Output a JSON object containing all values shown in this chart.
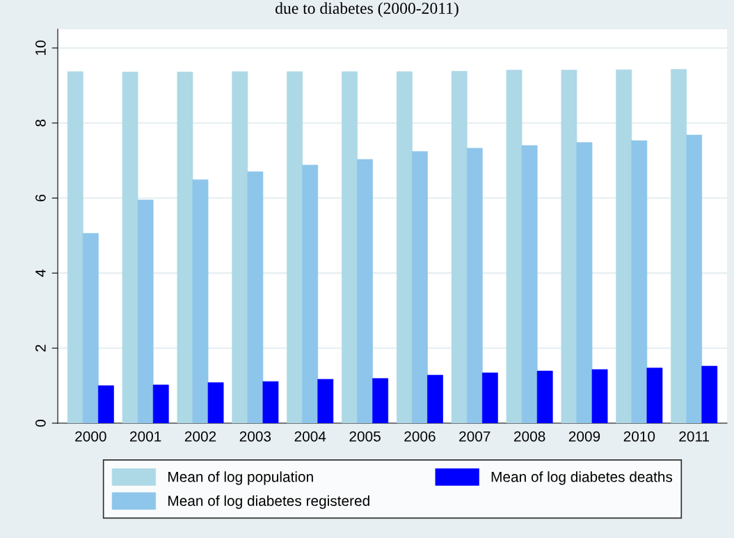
{
  "chart_data": {
    "type": "bar",
    "title": "due to diabetes (2000-2011)",
    "categories": [
      "2000",
      "2001",
      "2002",
      "2003",
      "2004",
      "2005",
      "2006",
      "2007",
      "2008",
      "2009",
      "2010",
      "2011"
    ],
    "series": [
      {
        "name": "Mean of log population",
        "color": "#add8e6",
        "values": [
          9.37,
          9.36,
          9.36,
          9.37,
          9.37,
          9.37,
          9.37,
          9.38,
          9.41,
          9.41,
          9.42,
          9.43
        ]
      },
      {
        "name": "Mean of log diabetes registered",
        "color": "#8ec5ea",
        "values": [
          5.06,
          5.95,
          6.49,
          6.7,
          6.88,
          7.03,
          7.24,
          7.33,
          7.4,
          7.48,
          7.53,
          7.68
        ]
      },
      {
        "name": "Mean of log diabetes deaths",
        "color": "#0000ff",
        "values": [
          1.0,
          1.02,
          1.08,
          1.11,
          1.17,
          1.19,
          1.28,
          1.34,
          1.39,
          1.43,
          1.47,
          1.52
        ]
      }
    ],
    "ylim": [
      0,
      10.5
    ],
    "yticks": [
      0,
      2,
      4,
      6,
      8,
      10
    ],
    "grid": "y",
    "legend": "bottom"
  }
}
